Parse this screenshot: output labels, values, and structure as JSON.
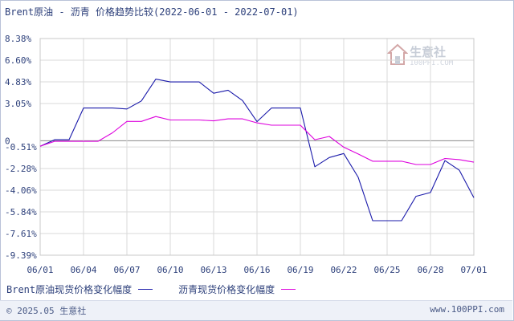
{
  "chart_data": {
    "type": "line",
    "title": "Brent原油 - 沥青 价格趋势比较(2022-06-01 - 2022-07-01)",
    "x_labels": [
      "06/01",
      "06/04",
      "06/07",
      "06/10",
      "06/13",
      "06/16",
      "06/19",
      "06/22",
      "06/25",
      "06/28",
      "07/01"
    ],
    "y_ticks": [
      "8.38%",
      "6.60%",
      "4.83%",
      "3.05%",
      "0",
      "-0.51%",
      "-2.28%",
      "-4.06%",
      "-5.84%",
      "-7.61%",
      "-9.39%"
    ],
    "y_tick_values": [
      8.38,
      6.6,
      4.83,
      3.05,
      0,
      -0.51,
      -2.28,
      -4.06,
      -5.84,
      -7.61,
      -9.39
    ],
    "ylim": [
      -9.39,
      8.38
    ],
    "xlim": [
      "06/01",
      "07/01"
    ],
    "grid": true,
    "legend_position": "bottom",
    "series": [
      {
        "name": "Brent原油现货价格变化幅度",
        "color": "#1a1aaa",
        "x": [
          "06/01",
          "06/02",
          "06/03",
          "06/04",
          "06/05",
          "06/06",
          "06/07",
          "06/08",
          "06/09",
          "06/10",
          "06/11",
          "06/12",
          "06/13",
          "06/14",
          "06/15",
          "06/16",
          "06/17",
          "06/18",
          "06/19",
          "06/20",
          "06/21",
          "06/22",
          "06/23",
          "06/24",
          "06/25",
          "06/26",
          "06/27",
          "06/28",
          "06/29",
          "06/30",
          "07/01"
        ],
        "values": [
          -0.45,
          0.08,
          0.08,
          2.68,
          2.68,
          2.68,
          2.6,
          3.26,
          5.05,
          4.82,
          4.82,
          4.82,
          3.89,
          4.14,
          3.29,
          1.56,
          2.68,
          2.68,
          2.68,
          -2.14,
          -1.38,
          -1.05,
          -3.0,
          -6.56,
          -6.56,
          -6.56,
          -4.56,
          -4.25,
          -1.63,
          -2.43,
          -4.68
        ]
      },
      {
        "name": "沥青现货价格变化幅度",
        "color": "#dd00dd",
        "x": [
          "06/01",
          "06/02",
          "06/03",
          "06/04",
          "06/05",
          "06/06",
          "06/07",
          "06/08",
          "06/09",
          "06/10",
          "06/11",
          "06/12",
          "06/13",
          "06/14",
          "06/15",
          "06/16",
          "06/17",
          "06/18",
          "06/19",
          "06/20",
          "06/21",
          "06/22",
          "06/23",
          "06/24",
          "06/25",
          "06/26",
          "06/27",
          "06/28",
          "06/29",
          "06/30",
          "07/01"
        ],
        "values": [
          -0.45,
          -0.05,
          -0.05,
          -0.05,
          -0.05,
          0.65,
          1.58,
          1.58,
          1.98,
          1.7,
          1.7,
          1.7,
          1.63,
          1.79,
          1.79,
          1.46,
          1.27,
          1.27,
          1.27,
          0.08,
          0.35,
          -0.53,
          -1.09,
          -1.68,
          -1.68,
          -1.68,
          -1.95,
          -1.95,
          -1.46,
          -1.55,
          -1.76
        ]
      }
    ]
  },
  "legend": {
    "items": [
      {
        "label": "Brent原油现货价格变化幅度",
        "color": "#1a1aaa"
      },
      {
        "label": "沥青现货价格变化幅度",
        "color": "#dd00dd"
      }
    ]
  },
  "footer": {
    "copyright": "© 2025.05 生意社",
    "url": "www.100PPI.com"
  },
  "watermark": {
    "text": "生意社",
    "url": "100PPI.COM"
  },
  "colors": {
    "axis_text": "#2c3f7a",
    "grid": "#dadada",
    "zero_line": "#8a8a8a"
  }
}
